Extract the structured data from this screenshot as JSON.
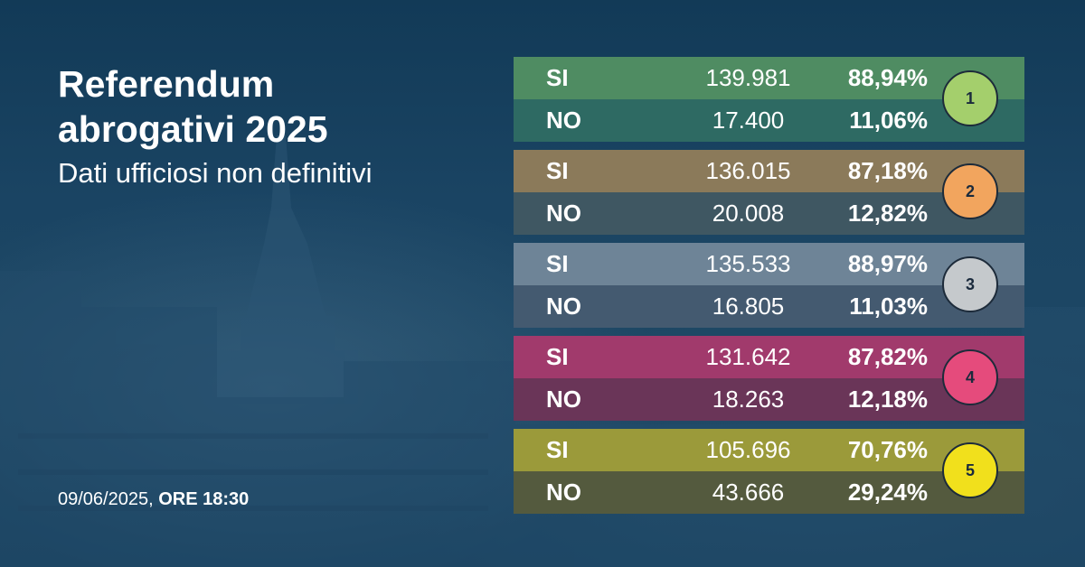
{
  "header": {
    "title_line1": "Referendum",
    "title_line2": "abrogativi 2025",
    "subtitle": "Dati ufficiosi non definitivi"
  },
  "footer": {
    "date": "09/06/2025,",
    "time": "ORE 18:30"
  },
  "results": [
    {
      "number": "1",
      "si": {
        "label": "SI",
        "votes": "139.981",
        "pct": "88,94%"
      },
      "no": {
        "label": "NO",
        "votes": "17.400",
        "pct": "11,06%"
      },
      "colors": {
        "si_bg": "#4f8c62",
        "no_bg": "#2e6a63",
        "badge": "#a4cf6c"
      }
    },
    {
      "number": "2",
      "si": {
        "label": "SI",
        "votes": "136.015",
        "pct": "87,18%"
      },
      "no": {
        "label": "NO",
        "votes": "20.008",
        "pct": "12,82%"
      },
      "colors": {
        "si_bg": "#8b7a5a",
        "no_bg": "#3f5762",
        "badge": "#f2a55e"
      }
    },
    {
      "number": "3",
      "si": {
        "label": "SI",
        "votes": "135.533",
        "pct": "88,97%"
      },
      "no": {
        "label": "NO",
        "votes": "16.805",
        "pct": "11,03%"
      },
      "colors": {
        "si_bg": "#6e8497",
        "no_bg": "#445a70",
        "badge": "#c5c9cc"
      }
    },
    {
      "number": "4",
      "si": {
        "label": "SI",
        "votes": "131.642",
        "pct": "87,82%"
      },
      "no": {
        "label": "NO",
        "votes": "18.263",
        "pct": "12,18%"
      },
      "colors": {
        "si_bg": "#a13a6c",
        "no_bg": "#6a3558",
        "badge": "#e54b7c"
      }
    },
    {
      "number": "5",
      "si": {
        "label": "SI",
        "votes": "105.696",
        "pct": "70,76%"
      },
      "no": {
        "label": "NO",
        "votes": "43.666",
        "pct": "29,24%"
      },
      "colors": {
        "si_bg": "#9b9a3a",
        "no_bg": "#545a3e",
        "badge": "#f1e01c"
      }
    }
  ]
}
